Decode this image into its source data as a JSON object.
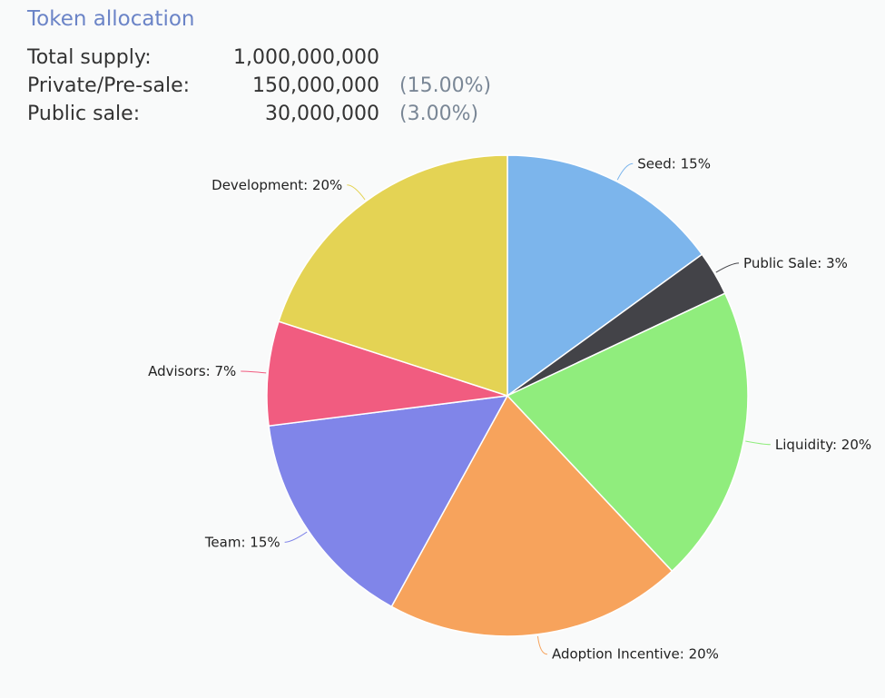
{
  "header": {
    "title": "Token allocation",
    "stats": [
      {
        "label": "Total supply:",
        "value": "1,000,000,000",
        "pct": ""
      },
      {
        "label": "Private/Pre-sale:",
        "value": "150,000,000",
        "pct": "(15.00%)"
      },
      {
        "label": "Public sale:",
        "value": "30,000,000",
        "pct": "(3.00%)"
      }
    ]
  },
  "chart_data": {
    "type": "pie",
    "slices": [
      {
        "name": "Seed",
        "value": 15,
        "label": "Seed: 15%",
        "color": "#7cb5ec"
      },
      {
        "name": "Public Sale",
        "value": 3,
        "label": "Public Sale: 3%",
        "color": "#434348"
      },
      {
        "name": "Liquidity",
        "value": 20,
        "label": "Liquidity: 20%",
        "color": "#90ed7d"
      },
      {
        "name": "Adoption Incentive",
        "value": 20,
        "label": "Adoption Incentive: 20%",
        "color": "#f7a35c"
      },
      {
        "name": "Team",
        "value": 15,
        "label": "Team: 15%",
        "color": "#8085e9"
      },
      {
        "name": "Advisors",
        "value": 7,
        "label": "Advisors: 7%",
        "color": "#f15c80"
      },
      {
        "name": "Development",
        "value": 20,
        "label": "Development: 20%",
        "color": "#e4d354"
      }
    ]
  }
}
